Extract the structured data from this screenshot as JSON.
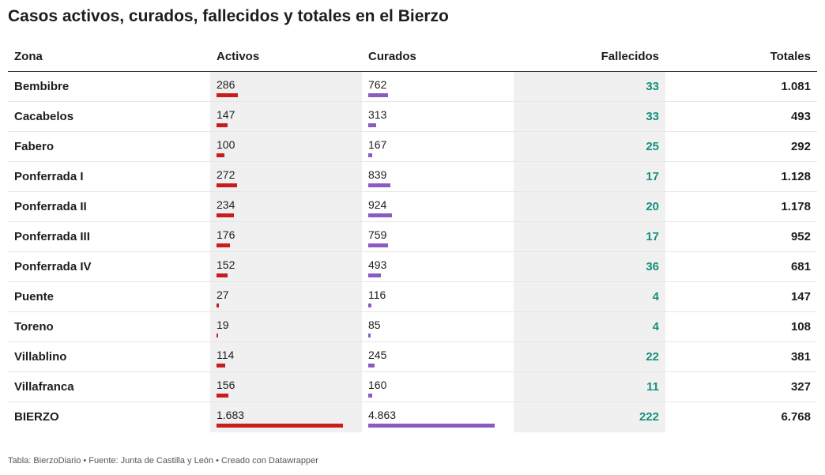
{
  "title": "Casos activos, curados, fallecidos y totales en el Bierzo",
  "footer": "Tabla: BierzoDiario • Fuente: Junta de Castilla y León • Creado con Datawrapper",
  "colors": {
    "activos_bar": "#c71e1d",
    "curados_bar": "#8a5cc2",
    "fallecidos_text": "#15907d",
    "shade": "#f0f0f0"
  },
  "chart_data": {
    "type": "table",
    "columns": [
      "Zona",
      "Activos",
      "Curados",
      "Fallecidos",
      "Totales"
    ],
    "bar_max": {
      "activos": 1683,
      "curados": 4863
    },
    "rows": [
      {
        "zona": "Bembibre",
        "activos": "286",
        "activos_value": 286,
        "curados": "762",
        "curados_value": 762,
        "fallecidos": "33",
        "totales": "1.081"
      },
      {
        "zona": "Cacabelos",
        "activos": "147",
        "activos_value": 147,
        "curados": "313",
        "curados_value": 313,
        "fallecidos": "33",
        "totales": "493"
      },
      {
        "zona": "Fabero",
        "activos": "100",
        "activos_value": 100,
        "curados": "167",
        "curados_value": 167,
        "fallecidos": "25",
        "totales": "292"
      },
      {
        "zona": "Ponferrada I",
        "activos": "272",
        "activos_value": 272,
        "curados": "839",
        "curados_value": 839,
        "fallecidos": "17",
        "totales": "1.128"
      },
      {
        "zona": "Ponferrada II",
        "activos": "234",
        "activos_value": 234,
        "curados": "924",
        "curados_value": 924,
        "fallecidos": "20",
        "totales": "1.178"
      },
      {
        "zona": "Ponferrada III",
        "activos": "176",
        "activos_value": 176,
        "curados": "759",
        "curados_value": 759,
        "fallecidos": "17",
        "totales": "952"
      },
      {
        "zona": "Ponferrada IV",
        "activos": "152",
        "activos_value": 152,
        "curados": "493",
        "curados_value": 493,
        "fallecidos": "36",
        "totales": "681"
      },
      {
        "zona": "Puente",
        "activos": "27",
        "activos_value": 27,
        "curados": "116",
        "curados_value": 116,
        "fallecidos": "4",
        "totales": "147"
      },
      {
        "zona": "Toreno",
        "activos": "19",
        "activos_value": 19,
        "curados": "85",
        "curados_value": 85,
        "fallecidos": "4",
        "totales": "108"
      },
      {
        "zona": "Villablino",
        "activos": "114",
        "activos_value": 114,
        "curados": "245",
        "curados_value": 245,
        "fallecidos": "22",
        "totales": "381"
      },
      {
        "zona": "Villafranca",
        "activos": "156",
        "activos_value": 156,
        "curados": "160",
        "curados_value": 160,
        "fallecidos": "11",
        "totales": "327"
      },
      {
        "zona": "BIERZO",
        "activos": "1.683",
        "activos_value": 1683,
        "curados": "4.863",
        "curados_value": 4863,
        "fallecidos": "222",
        "totales": "6.768"
      }
    ]
  }
}
